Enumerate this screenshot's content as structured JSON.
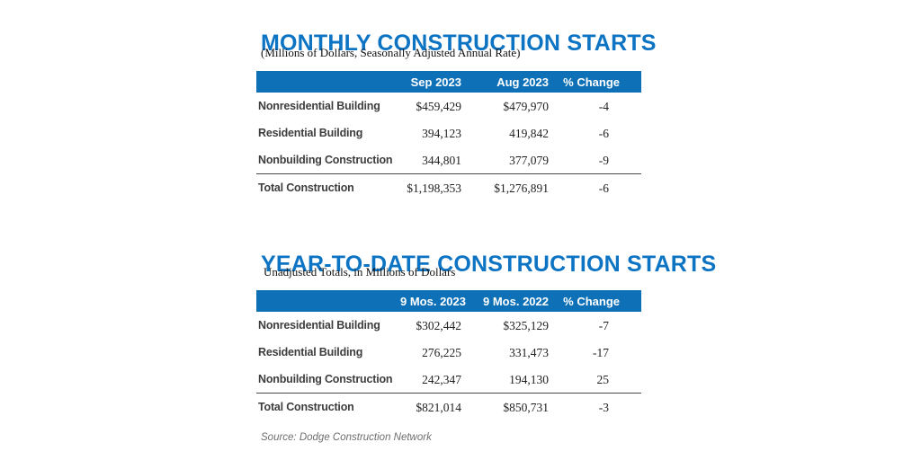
{
  "colors": {
    "title_blue": "#0d74c4",
    "header_bar_blue": "#0e71b8",
    "header_text": "#ffffff",
    "row_label_gray": "#3d3d3d",
    "number_gray": "#222222",
    "divider_gray": "#4a4a4a",
    "source_gray": "#6e6e6e",
    "background": "#ffffff"
  },
  "tables": [
    {
      "title": "MONTHLY CONSTRUCTION STARTS",
      "subtitle": "(Millions of Dollars, Seasonally Adjusted Annual Rate)",
      "columns": [
        "",
        "Sep 2023",
        "Aug 2023",
        "% Change"
      ],
      "rows": [
        {
          "label": "Nonresidential Building",
          "c1": "$459,429",
          "c2": "$479,970",
          "c3": "-4"
        },
        {
          "label": "Residential Building",
          "c1": "394,123",
          "c2": "419,842",
          "c3": "-6"
        },
        {
          "label": "Nonbuilding Construction",
          "c1": "344,801",
          "c2": "377,079",
          "c3": "-9"
        }
      ],
      "total": {
        "label": "Total Construction",
        "c1": "$1,198,353",
        "c2": "$1,276,891",
        "c3": "-6"
      }
    },
    {
      "title": "YEAR-TO-DATE CONSTRUCTION STARTS",
      "subtitle": "Unadjusted Totals, in Millions of Dollars",
      "columns": [
        "",
        "9 Mos. 2023",
        "9 Mos. 2022",
        "% Change"
      ],
      "rows": [
        {
          "label": "Nonresidential Building",
          "c1": "$302,442",
          "c2": "$325,129",
          "c3": "-7"
        },
        {
          "label": "Residential Building",
          "c1": "276,225",
          "c2": "331,473",
          "c3": "-17"
        },
        {
          "label": "Nonbuilding Construction",
          "c1": "242,347",
          "c2": "194,130",
          "c3": "25"
        }
      ],
      "total": {
        "label": "Total Construction",
        "c1": "$821,014",
        "c2": "$850,731",
        "c3": "-3"
      }
    }
  ],
  "footer": {
    "source": "Source: Dodge Construction Network"
  }
}
